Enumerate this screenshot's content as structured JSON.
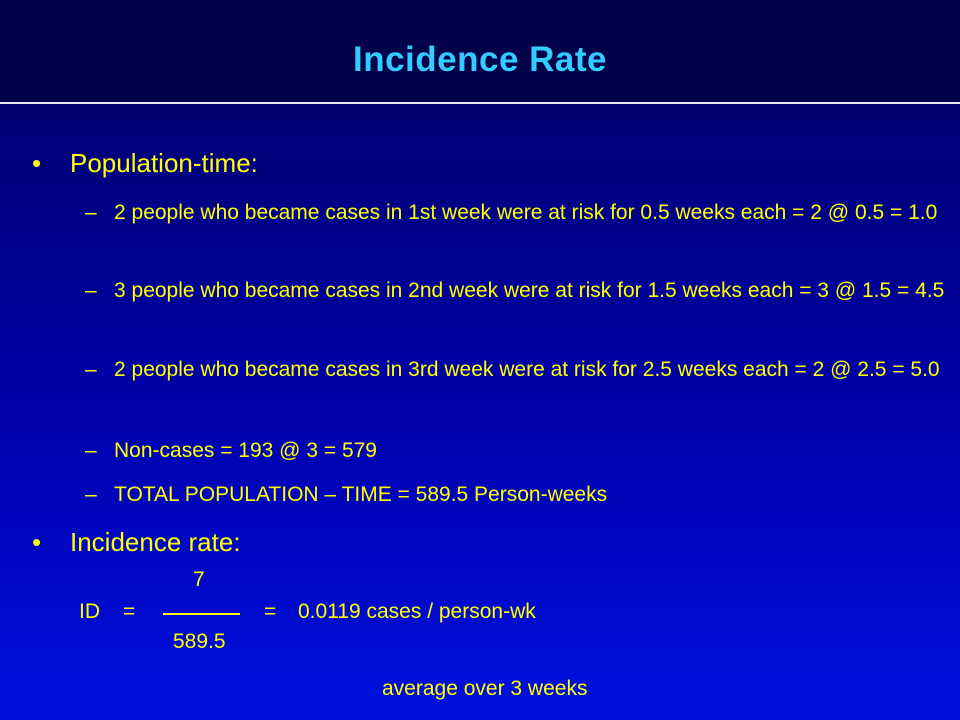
{
  "slide": {
    "title": "Incidence  Rate"
  },
  "bullets": [
    {
      "label": "Population-time:",
      "items": [
        "2 people who became cases in 1st week were at risk for 0.5 weeks each = 2 @ 0.5 = 1.0",
        "3 people who became cases in 2nd week were at risk for 1.5 weeks each = 3 @ 1.5 = 4.5",
        "2 people who became cases in 3rd week  were at risk for 2.5 weeks each = 2 @ 2.5 = 5.0",
        "Non-cases = 193 @ 3 = 579",
        "TOTAL POPULATION – TIME = 589.5 Person-weeks"
      ]
    },
    {
      "label": "Incidence  rate:"
    }
  ],
  "glyphs": {
    "bullet": "•",
    "dash": "–"
  },
  "formula": {
    "lhs": "ID",
    "equals": "=",
    "numerator": "7",
    "denominator": "589.5",
    "result": "0.0119 cases / person-wk",
    "note": "average over 3 weeks"
  },
  "colors": {
    "title": "#33ccff",
    "text": "#ffff00",
    "background_top": "#00005a",
    "background_bottom": "#0010e0"
  }
}
